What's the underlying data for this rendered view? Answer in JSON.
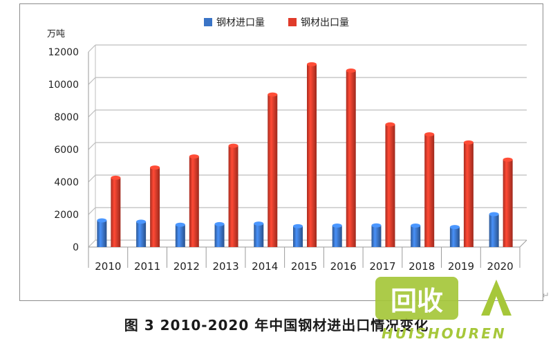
{
  "chart_data": {
    "type": "bar",
    "unit_label": "万吨",
    "categories": [
      "2010",
      "2011",
      "2012",
      "2013",
      "2014",
      "2015",
      "2016",
      "2017",
      "2018",
      "2019",
      "2020"
    ],
    "series": [
      {
        "name": "钢材进口量",
        "color": "#3a74c6",
        "values": [
          1640,
          1560,
          1370,
          1410,
          1440,
          1280,
          1320,
          1330,
          1320,
          1230,
          2020
        ]
      },
      {
        "name": "钢材出口量",
        "color": "#e03b2a",
        "values": [
          4260,
          4890,
          5570,
          6230,
          9380,
          11240,
          10850,
          7540,
          6930,
          6430,
          5370
        ]
      }
    ],
    "yticks": [
      "0",
      "2000",
      "4000",
      "6000",
      "8000",
      "10000",
      "12000"
    ],
    "ylim": [
      0,
      12000
    ],
    "grid": true,
    "legend_position": "top-center",
    "caption": "图 3   2010-2020 年中国钢材进出口情况变化"
  },
  "watermark": {
    "icon_text": "回收",
    "brand_text": "HUISHOUREN",
    "color": "#a6c73a"
  },
  "return_mark": "↵"
}
